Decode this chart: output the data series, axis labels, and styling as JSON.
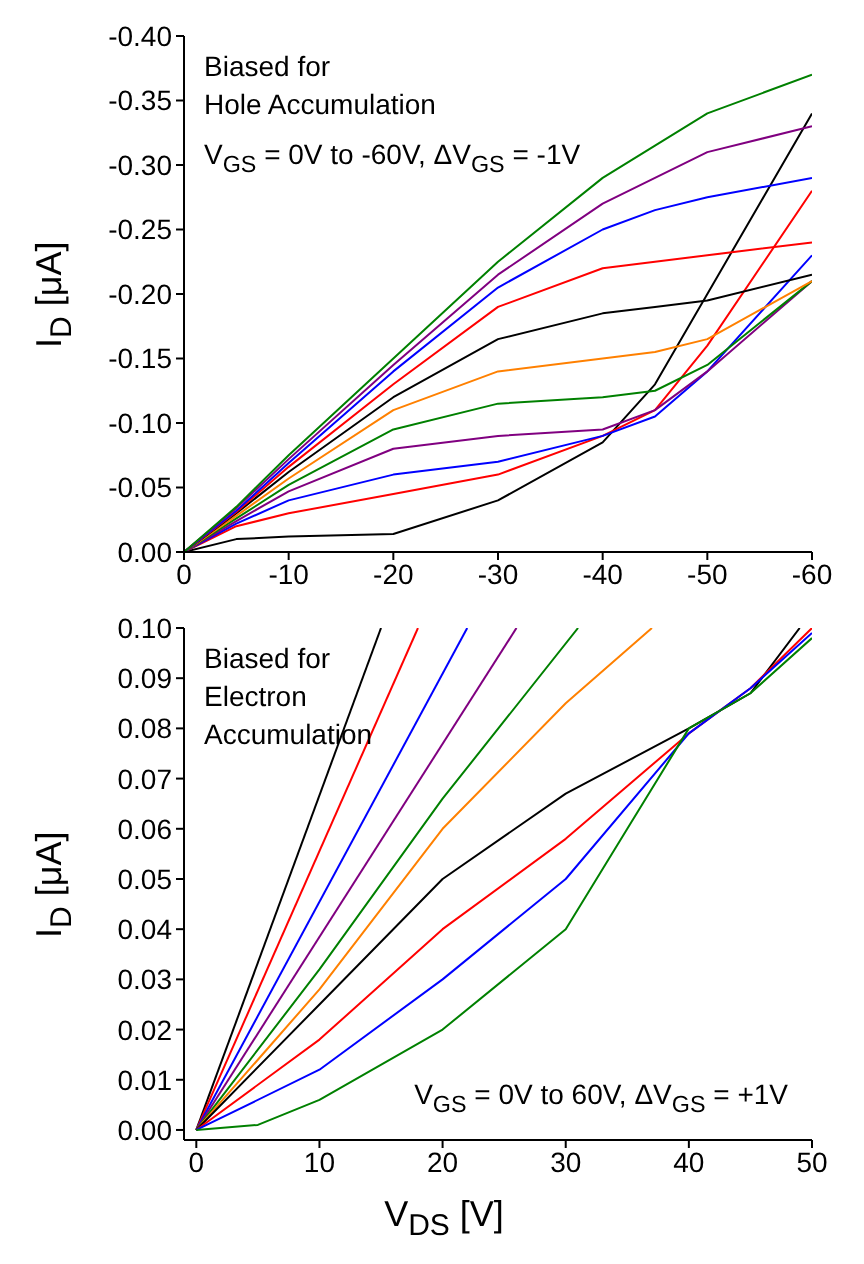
{
  "chart_data": [
    {
      "type": "line",
      "ylabel": "I$_{D}$ [μA]",
      "annotations": [
        "Biased for\nHole Accumulation",
        "V$_{GS}$ = 0V to -60V, ΔV$_{GS}$ = -1V"
      ],
      "x": [
        0,
        -5,
        -10,
        -20,
        -30,
        -40,
        -45,
        -50,
        -60
      ],
      "xlim": [
        0,
        -60
      ],
      "xticks": [
        0,
        -10,
        -20,
        -30,
        -40,
        -50,
        -60
      ],
      "ylim": [
        0,
        -0.4
      ],
      "yticks": [
        {
          "value": 0,
          "label": "0.00"
        },
        {
          "value": -0.05,
          "label": "-0.05"
        },
        {
          "value": -0.1,
          "label": "-0.10"
        },
        {
          "value": -0.15,
          "label": "-0.15"
        },
        {
          "value": -0.2,
          "label": "-0.20"
        },
        {
          "value": -0.25,
          "label": "-0.25"
        },
        {
          "value": -0.3,
          "label": "-0.30"
        },
        {
          "value": -0.35,
          "label": "-0.35"
        },
        {
          "value": -0.4,
          "label": "-0.40"
        }
      ],
      "grid": false,
      "legend": false,
      "marker": "none",
      "line_style": "solid",
      "series": [
        {
          "color": "#000000",
          "values": [
            0,
            -0.01,
            -0.012,
            -0.014,
            -0.04,
            -0.085,
            -0.13,
            -0.2,
            -0.34
          ]
        },
        {
          "color": "#ff0000",
          "values": [
            0,
            -0.02,
            -0.03,
            -0.045,
            -0.06,
            -0.09,
            -0.11,
            -0.16,
            -0.28
          ]
        },
        {
          "color": "#0000ff",
          "values": [
            0,
            -0.022,
            -0.04,
            -0.06,
            -0.07,
            -0.09,
            -0.105,
            -0.14,
            -0.23
          ]
        },
        {
          "color": "#800080",
          "values": [
            0,
            -0.024,
            -0.047,
            -0.08,
            -0.09,
            -0.095,
            -0.11,
            -0.14,
            -0.21
          ]
        },
        {
          "color": "#008000",
          "values": [
            0,
            -0.026,
            -0.052,
            -0.095,
            -0.115,
            -0.12,
            -0.125,
            -0.145,
            -0.21
          ]
        },
        {
          "color": "#ff8000",
          "values": [
            0,
            -0.028,
            -0.057,
            -0.11,
            -0.14,
            -0.15,
            -0.155,
            -0.165,
            -0.21
          ]
        },
        {
          "color": "#000000",
          "values": [
            0,
            -0.03,
            -0.062,
            -0.12,
            -0.165,
            -0.185,
            -0.19,
            -0.195,
            -0.215
          ]
        },
        {
          "color": "#ff0000",
          "values": [
            0,
            -0.031,
            -0.066,
            -0.13,
            -0.19,
            -0.22,
            -0.225,
            -0.23,
            -0.24
          ]
        },
        {
          "color": "#0000ff",
          "values": [
            0,
            -0.032,
            -0.069,
            -0.14,
            -0.205,
            -0.25,
            -0.265,
            -0.275,
            -0.29
          ]
        },
        {
          "color": "#800080",
          "values": [
            0,
            -0.034,
            -0.072,
            -0.145,
            -0.215,
            -0.27,
            -0.29,
            -0.31,
            -0.33
          ]
        },
        {
          "color": "#008000",
          "values": [
            0,
            -0.035,
            -0.075,
            -0.15,
            -0.225,
            -0.29,
            -0.315,
            -0.34,
            -0.37
          ]
        }
      ]
    },
    {
      "type": "line",
      "xlabel": "V$_{DS}$ [V]",
      "ylabel": "I$_{D}$ [μA]",
      "annotations": [
        "Biased for\nElectron\nAccumulation",
        "V$_{GS}$ = 0V to 60V, ΔV$_{GS}$ = +1V"
      ],
      "xlim": [
        -1,
        50
      ],
      "xticks": [
        0,
        10,
        20,
        30,
        40,
        50
      ],
      "ylim": [
        -0.002,
        0.1
      ],
      "yticks": [
        {
          "value": 0,
          "label": "0.00"
        },
        {
          "value": 0.01,
          "label": "0.01"
        },
        {
          "value": 0.02,
          "label": "0.02"
        },
        {
          "value": 0.03,
          "label": "0.03"
        },
        {
          "value": 0.04,
          "label": "0.04"
        },
        {
          "value": 0.05,
          "label": "0.05"
        },
        {
          "value": 0.06,
          "label": "0.06"
        },
        {
          "value": 0.07,
          "label": "0.07"
        },
        {
          "value": 0.08,
          "label": "0.08"
        },
        {
          "value": 0.09,
          "label": "0.09"
        },
        {
          "value": 0.1,
          "label": "0.10"
        }
      ],
      "grid": false,
      "legend": false,
      "marker": "none",
      "line_style": "solid",
      "series": [
        {
          "color": "#000000",
          "x": [
            0,
            15
          ],
          "values": [
            0,
            0.1
          ]
        },
        {
          "color": "#ff0000",
          "x": [
            0,
            18
          ],
          "values": [
            0,
            0.1
          ]
        },
        {
          "color": "#0000ff",
          "x": [
            0,
            22
          ],
          "values": [
            0,
            0.1
          ]
        },
        {
          "color": "#800080",
          "x": [
            0,
            26
          ],
          "values": [
            0,
            0.1
          ]
        },
        {
          "color": "#008000",
          "x": [
            0,
            10,
            20,
            31
          ],
          "values": [
            0,
            0.032,
            0.066,
            0.1
          ]
        },
        {
          "color": "#ff8000",
          "x": [
            0,
            10,
            20,
            30,
            37
          ],
          "values": [
            0,
            0.028,
            0.06,
            0.085,
            0.1
          ]
        },
        {
          "color": "#000000",
          "x": [
            0,
            10,
            20,
            30,
            40,
            45,
            49
          ],
          "values": [
            0,
            0.025,
            0.05,
            0.067,
            0.08,
            0.087,
            0.1
          ]
        },
        {
          "color": "#ff0000",
          "x": [
            0,
            10,
            20,
            30,
            40,
            45,
            50
          ],
          "values": [
            0,
            0.018,
            0.04,
            0.058,
            0.079,
            0.088,
            0.1
          ]
        },
        {
          "color": "#0000ff",
          "x": [
            0,
            10,
            20,
            30,
            40,
            45,
            50
          ],
          "values": [
            0,
            0.012,
            0.03,
            0.05,
            0.079,
            0.088,
            0.099
          ]
        },
        {
          "color": "#008000",
          "x": [
            0,
            5,
            10,
            20,
            30,
            35,
            40,
            45,
            50
          ],
          "values": [
            0,
            0.001,
            0.006,
            0.02,
            0.04,
            0.06,
            0.08,
            0.087,
            0.098
          ]
        }
      ]
    }
  ]
}
